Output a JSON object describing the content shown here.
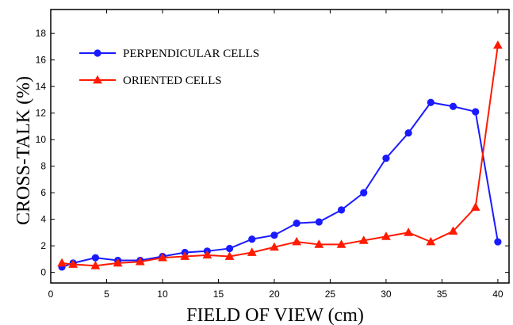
{
  "chart_data": {
    "type": "line",
    "xlabel": "FIELD OF VIEW (cm)",
    "ylabel": "CROSS-TALK (%)",
    "xlim": [
      0,
      41
    ],
    "ylim": [
      -0.8,
      19.8
    ],
    "xticks": [
      0,
      5,
      10,
      15,
      20,
      25,
      30,
      35,
      40
    ],
    "yticks": [
      0,
      2,
      4,
      6,
      8,
      10,
      12,
      14,
      16,
      18
    ],
    "grid": false,
    "legend_position": "top-left",
    "series": [
      {
        "name": "PERPENDICULAR CELLS",
        "color": "#1a1aff",
        "marker": "circle",
        "x": [
          1,
          2,
          4,
          6,
          8,
          10,
          12,
          14,
          16,
          18,
          20,
          22,
          24,
          26,
          28,
          30,
          32,
          34,
          36,
          38,
          40
        ],
        "y": [
          0.4,
          0.7,
          1.1,
          0.9,
          0.9,
          1.2,
          1.5,
          1.6,
          1.8,
          2.5,
          2.8,
          3.7,
          3.8,
          4.7,
          6.0,
          8.6,
          10.5,
          12.8,
          12.5,
          12.1,
          2.3
        ]
      },
      {
        "name": "ORIENTED CELLS",
        "color": "#ff1a00",
        "marker": "triangle",
        "x": [
          1,
          2,
          4,
          6,
          8,
          10,
          12,
          14,
          16,
          18,
          20,
          22,
          24,
          26,
          28,
          30,
          32,
          34,
          36,
          38,
          40
        ],
        "y": [
          0.7,
          0.6,
          0.5,
          0.7,
          0.8,
          1.1,
          1.2,
          1.3,
          1.2,
          1.5,
          1.9,
          2.3,
          2.1,
          2.1,
          2.4,
          2.7,
          3.0,
          2.3,
          3.1,
          4.9,
          17.1
        ]
      }
    ]
  }
}
